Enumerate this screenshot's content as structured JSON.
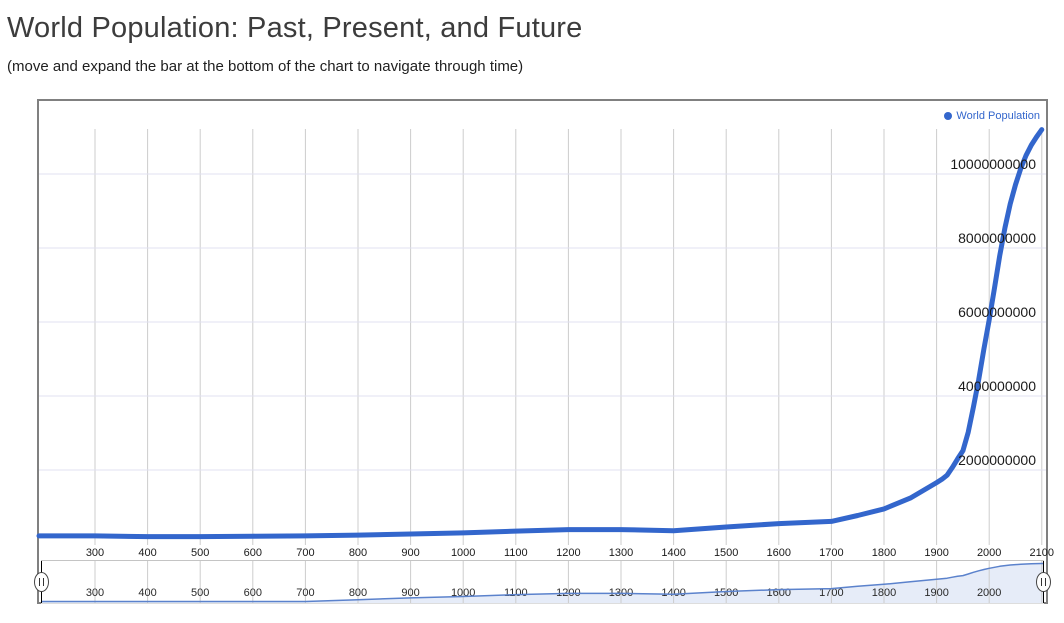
{
  "page": {
    "title": "World Population: Past, Present, and Future",
    "subtitle": "(move and expand the bar at the bottom of the chart to navigate through time)"
  },
  "legend": {
    "label": "World Population"
  },
  "colors": {
    "series": "#3366cc",
    "legend_text": "#3366cc",
    "grid_vertical": "#cccccc",
    "grid_horizontal": "#e0e0f0",
    "chart_border": "#808080",
    "mini_fill": "#e6ecf8",
    "mini_line": "#5b82cc",
    "tick_text": "#1a1a1a"
  },
  "icons": {
    "slider_handle": "pause-bars-icon"
  },
  "chart_data": {
    "type": "line",
    "title": "World Population: Past, Present, and Future",
    "legend_entries": [
      "World Population"
    ],
    "legend_position": "top-right",
    "grid": true,
    "xlim": [
      200,
      2100
    ],
    "ylim": [
      0,
      12000000000
    ],
    "x_ticks": [
      300,
      400,
      500,
      600,
      700,
      800,
      900,
      1000,
      1100,
      1200,
      1300,
      1400,
      1500,
      1600,
      1700,
      1800,
      1900,
      2000,
      2100
    ],
    "x_tick_labels": [
      "300",
      "400",
      "500",
      "600",
      "700",
      "800",
      "900",
      "1000",
      "1100",
      "1200",
      "1300",
      "1400",
      "1500",
      "1600",
      "1700",
      "1800",
      "1900",
      "2000",
      "2100"
    ],
    "y_ticks": [
      2000000000,
      4000000000,
      6000000000,
      8000000000,
      10000000000
    ],
    "y_tick_labels": [
      "2000000000",
      "4000000000",
      "6000000000",
      "8000000000",
      "10000000000"
    ],
    "overview_x_ticks": [
      300,
      400,
      500,
      600,
      700,
      800,
      900,
      1000,
      1100,
      1200,
      1300,
      1400,
      1500,
      1600,
      1700,
      1800,
      1900,
      2000
    ],
    "overview_scale": "log",
    "series": [
      {
        "name": "World Population",
        "color": "#3366cc",
        "x": [
          200,
          300,
          400,
          500,
          600,
          700,
          800,
          900,
          1000,
          1100,
          1200,
          1300,
          1400,
          1500,
          1600,
          1650,
          1700,
          1750,
          1800,
          1850,
          1900,
          1910,
          1920,
          1930,
          1940,
          1950,
          1960,
          1970,
          1980,
          1990,
          2000,
          2010,
          2020,
          2030,
          2040,
          2050,
          2060,
          2070,
          2080,
          2090,
          2100
        ],
        "values_billions": [
          0.22,
          0.22,
          0.2,
          0.2,
          0.21,
          0.22,
          0.24,
          0.27,
          0.3,
          0.35,
          0.39,
          0.39,
          0.36,
          0.46,
          0.55,
          0.58,
          0.61,
          0.77,
          0.95,
          1.24,
          1.66,
          1.75,
          1.86,
          2.07,
          2.3,
          2.52,
          3.02,
          3.7,
          4.44,
          5.27,
          6.06,
          6.92,
          7.79,
          8.55,
          9.19,
          9.71,
          10.15,
          10.5,
          10.78,
          11.0,
          11.2
        ]
      }
    ]
  }
}
